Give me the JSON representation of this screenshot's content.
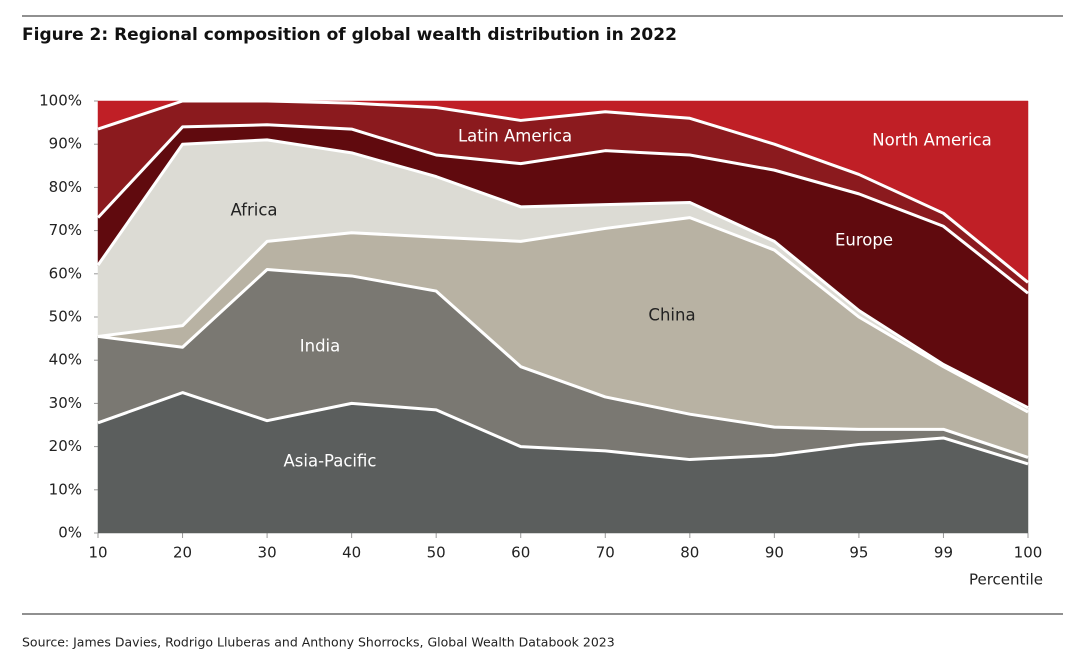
{
  "chart_data": {
    "type": "stacked_area",
    "title": "Figure 2: Regional composition of global wealth distribution in 2022",
    "x_label": "Percentile",
    "source": "Source: James Davies, Rodrigo Lluberas and Anthony Shorrocks, Global Wealth Databook 2023",
    "categories": [
      "10",
      "20",
      "30",
      "40",
      "50",
      "60",
      "70",
      "80",
      "90",
      "95",
      "99",
      "100"
    ],
    "ylim": [
      0,
      100
    ],
    "yticks": [
      {
        "value": 0,
        "label": "0%"
      },
      {
        "value": 10,
        "label": "10%"
      },
      {
        "value": 20,
        "label": "20%"
      },
      {
        "value": 30,
        "label": "30%"
      },
      {
        "value": 40,
        "label": "40%"
      },
      {
        "value": 50,
        "label": "50%"
      },
      {
        "value": 60,
        "label": "60%"
      },
      {
        "value": 70,
        "label": "70%"
      },
      {
        "value": 80,
        "label": "80%"
      },
      {
        "value": 90,
        "label": "90%"
      },
      {
        "value": 100,
        "label": "100%"
      }
    ],
    "series": [
      {
        "name": "Asia-Pacific",
        "color": "#5b5e5d",
        "values": [
          25.5,
          32.5,
          26,
          30,
          28.5,
          20,
          19,
          17,
          18,
          20.5,
          22,
          16
        ]
      },
      {
        "name": "India",
        "color": "#7a7872",
        "values": [
          20,
          10.5,
          35,
          29.5,
          27.5,
          18.5,
          12.5,
          10.5,
          6.5,
          3.5,
          2,
          1.5
        ]
      },
      {
        "name": "China",
        "color": "#b8b2a3",
        "values": [
          0,
          5,
          6.5,
          10,
          12.5,
          29,
          39,
          45.5,
          41,
          26,
          14.5,
          10.5
        ]
      },
      {
        "name": "Africa",
        "color": "#dcdbd4",
        "values": [
          16.5,
          42,
          23.5,
          18.5,
          14,
          8,
          5.5,
          3.5,
          2,
          1.5,
          0.5,
          1
        ]
      },
      {
        "name": "Europe",
        "color": "#600a0e",
        "values": [
          11,
          4,
          3.5,
          5.5,
          5,
          10,
          12.5,
          11,
          16.5,
          27,
          32,
          26.5
        ]
      },
      {
        "name": "Latin America",
        "color": "#8b1a1e",
        "values": [
          20.5,
          6,
          5.5,
          6,
          11,
          10,
          9,
          8.5,
          6,
          4.5,
          3,
          2.5
        ]
      },
      {
        "name": "North America",
        "color": "#c01f26",
        "values": [
          6.5,
          0,
          0,
          0.5,
          1.5,
          4.5,
          2.5,
          4,
          10,
          17,
          26,
          42
        ]
      }
    ]
  }
}
